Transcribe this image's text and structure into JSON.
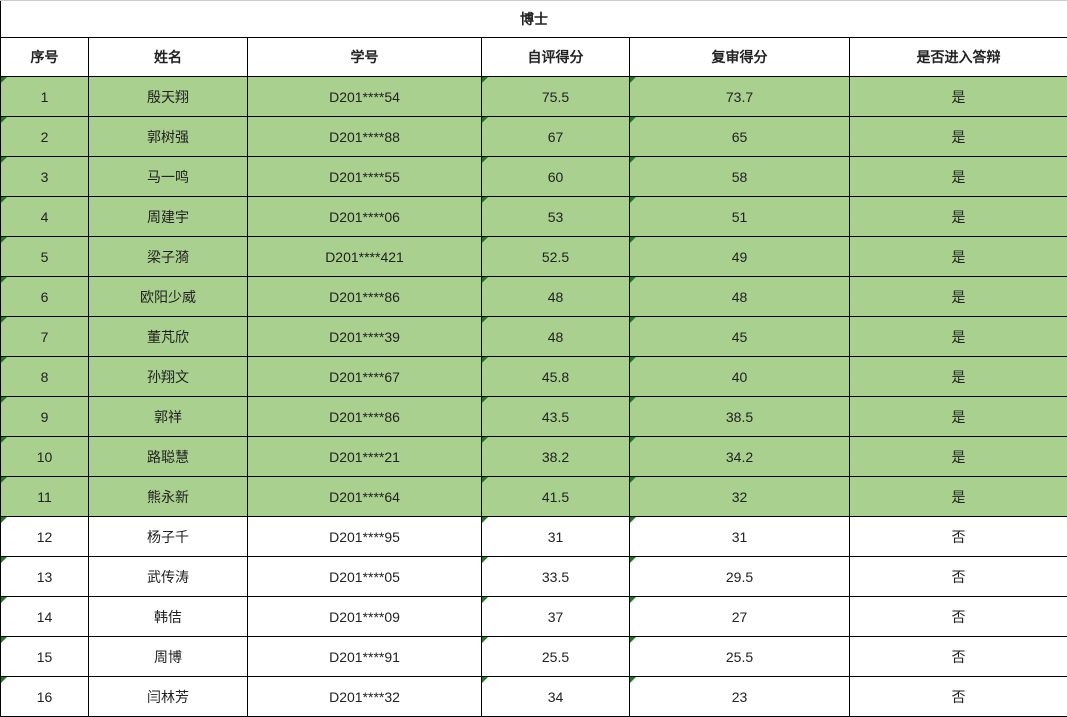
{
  "title": "博士",
  "columns": [
    "序号",
    "姓名",
    "学号",
    "自评得分",
    "复审得分",
    "是否进入答辩"
  ],
  "colors": {
    "pass_row": "#a9d08e",
    "error_marker": "#1e7b1e"
  },
  "rows": [
    [
      "1",
      "殷天翔",
      "D201****54",
      "75.5",
      "73.7",
      "是"
    ],
    [
      "2",
      "郭树强",
      "D201****88",
      "67",
      "65",
      "是"
    ],
    [
      "3",
      "马一鸣",
      "D201****55",
      "60",
      "58",
      "是"
    ],
    [
      "4",
      "周建宇",
      "D201****06",
      "53",
      "51",
      "是"
    ],
    [
      "5",
      "梁子漪",
      "D201****421",
      "52.5",
      "49",
      "是"
    ],
    [
      "6",
      "欧阳少威",
      "D201****86",
      "48",
      "48",
      "是"
    ],
    [
      "7",
      "董芃欣",
      "D201****39",
      "48",
      "45",
      "是"
    ],
    [
      "8",
      "孙翔文",
      "D201****67",
      "45.8",
      "40",
      "是"
    ],
    [
      "9",
      "郭祥",
      "D201****86",
      "43.5",
      "38.5",
      "是"
    ],
    [
      "10",
      "路聪慧",
      "D201****21",
      "38.2",
      "34.2",
      "是"
    ],
    [
      "11",
      "熊永新",
      "D201****64",
      "41.5",
      "32",
      "是"
    ],
    [
      "12",
      "杨子千",
      "D201****95",
      "31",
      "31",
      "否"
    ],
    [
      "13",
      "武传涛",
      "D201****05",
      "33.5",
      "29.5",
      "否"
    ],
    [
      "14",
      "韩佶",
      "D201****09",
      "37",
      "27",
      "否"
    ],
    [
      "15",
      "周博",
      "D201****91",
      "25.5",
      "25.5",
      "否"
    ],
    [
      "16",
      "闫林芳",
      "D201****32",
      "34",
      "23",
      "否"
    ]
  ]
}
